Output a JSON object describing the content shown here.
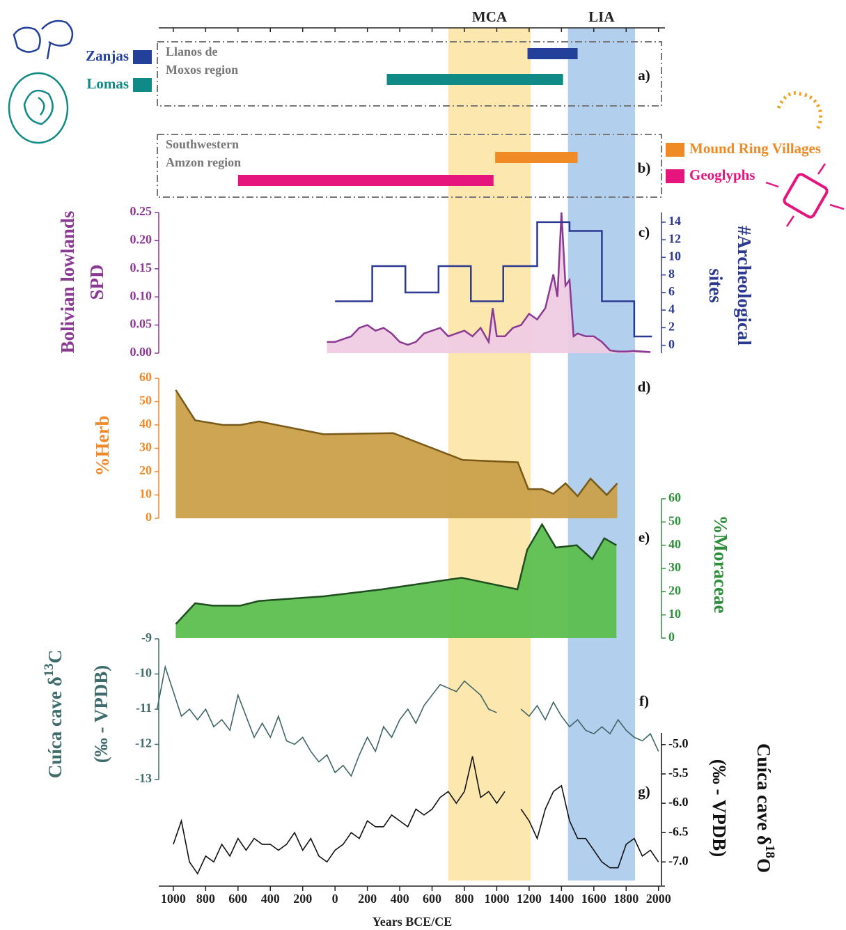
{
  "chart_data": {
    "type": "stacked-panels",
    "xlabel": "Years BCE/CE",
    "xlim": [
      -1090,
      2040
    ],
    "xticks": [
      {
        "value": -1000,
        "label": "1000"
      },
      {
        "value": -800,
        "label": "800"
      },
      {
        "value": -600,
        "label": "600"
      },
      {
        "value": -400,
        "label": "400"
      },
      {
        "value": -200,
        "label": "200"
      },
      0,
      200,
      400,
      600,
      800,
      1000,
      1200,
      1400,
      1600,
      1800,
      2000
    ],
    "bands": [
      {
        "name": "MCA",
        "start": 700,
        "end": 1210,
        "color": "#fbe29a"
      },
      {
        "name": "LIA",
        "start": 1440,
        "end": 1855,
        "color": "#9fc3e8"
      }
    ],
    "panels": [
      {
        "type": "gantt",
        "label": "a)",
        "legend": "left",
        "region": [
          "Llanos de",
          "Moxos region"
        ],
        "series": [
          {
            "name": "Zanjas",
            "color": "#23409a",
            "start": 1190,
            "end": 1500
          },
          {
            "name": "Lomas",
            "color": "#0f8a87",
            "start": 320,
            "end": 1410
          }
        ]
      },
      {
        "type": "gantt",
        "label": "b)",
        "legend": "right",
        "region": [
          "Southwestern",
          "Amzon region"
        ],
        "series": [
          {
            "name": "Mound Ring Villages",
            "color": "#f08a24",
            "start": 990,
            "end": 1500
          },
          {
            "name": "Geoglyphs",
            "color": "#e6157e",
            "start": -600,
            "end": 980
          }
        ]
      },
      {
        "type": "chart",
        "label": "c)",
        "ylabel": [
          "Bolivian lowlands",
          "SPD"
        ],
        "axis_color": "#8b3a93",
        "ylim": [
          0,
          0.25
        ],
        "yticks": [
          {
            "value": 0,
            "label": "0.00"
          },
          0.05,
          {
            "value": 0.1,
            "label": "0.10"
          },
          0.15,
          {
            "value": 0.2,
            "label": "0.20"
          },
          0.25
        ],
        "y2label": [
          "#Archeological",
          "sites"
        ],
        "y2_axis_color": "#2b3990",
        "y2lim": [
          -0.9,
          15.1
        ],
        "y2ticks": [
          0,
          2,
          4,
          6,
          8,
          10,
          12,
          14
        ],
        "series": [
          {
            "type": "area",
            "color": "#efcbe3",
            "line_color": "#8b3a93",
            "x": [
              -50,
              0,
              50,
              100,
              150,
              200,
              250,
              300,
              350,
              400,
              450,
              500,
              550,
              600,
              650,
              700,
              750,
              800,
              850,
              900,
              950,
              975,
              1000,
              1050,
              1100,
              1150,
              1200,
              1250,
              1300,
              1350,
              1375,
              1400,
              1425,
              1450,
              1475,
              1500,
              1550,
              1600,
              1650,
              1700,
              1750,
              1800,
              1850,
              1900,
              1950
            ],
            "values": [
              0.02,
              0.02,
              0.025,
              0.03,
              0.045,
              0.05,
              0.04,
              0.045,
              0.035,
              0.02,
              0.015,
              0.02,
              0.035,
              0.04,
              0.045,
              0.03,
              0.035,
              0.04,
              0.03,
              0.045,
              0.02,
              0.08,
              0.03,
              0.03,
              0.045,
              0.05,
              0.07,
              0.06,
              0.08,
              0.14,
              0.1,
              0.25,
              0.12,
              0.13,
              0.03,
              0.035,
              0.03,
              0.03,
              0.02,
              0.005,
              0.003,
              0.003,
              0.004,
              0.003,
              0.002
            ]
          },
          {
            "type": "step",
            "axis": "y2",
            "color": "#2b3990",
            "bins": [
              0,
              230,
              435,
              640,
              840,
              1040,
              1250,
              1450,
              1650,
              1850,
              1960
            ],
            "values": [
              5,
              9,
              6,
              9,
              5,
              9,
              14,
              13,
              5,
              1
            ]
          }
        ]
      },
      {
        "type": "chart",
        "label": "d)",
        "ylabel": [
          "%Herb"
        ],
        "axis_color": "#f0892a",
        "ylim": [
          0,
          60
        ],
        "yticks": [
          0,
          10,
          20,
          30,
          40,
          50,
          60
        ],
        "series": [
          {
            "type": "area",
            "color": "#caa04a",
            "line_color": "#7a5a18",
            "x": [
              -985,
              -865,
              -693,
              -585,
              -470,
              -70,
              360,
              790,
              1130,
              1195,
              1280,
              1350,
              1425,
              1500,
              1580,
              1680,
              1745
            ],
            "values": [
              55,
              42,
              40,
              40,
              41.5,
              36,
              36.5,
              25,
              24,
              12.5,
              12.5,
              10.5,
              15,
              9.5,
              17,
              10,
              15
            ]
          }
        ]
      },
      {
        "type": "chart",
        "label": "e)",
        "y2label": [
          "%Moraceae"
        ],
        "y2_axis_color": "#2f8f3c",
        "y2lim": [
          0,
          60
        ],
        "y2ticks": [
          0,
          10,
          20,
          30,
          40,
          50,
          60
        ],
        "series": [
          {
            "type": "area",
            "axis": "y2",
            "color": "#5cbf4f",
            "line_color": "#1f4d1f",
            "x": [
              -985,
              -865,
              -757,
              -585,
              -470,
              -70,
              290,
              783,
              1128,
              1188,
              1280,
              1365,
              1494,
              1590,
              1665,
              1740
            ],
            "values": [
              6,
              15,
              14,
              14,
              16,
              18,
              21,
              26,
              21,
              38,
              49,
              39,
              40,
              34,
              43,
              40
            ]
          }
        ]
      },
      {
        "type": "chart",
        "label": "f)",
        "ylabel": [
          [
            "Cuíca cave δ",
            "13",
            "C"
          ],
          "(‰ - VPDB)"
        ],
        "axis_color": "#3f6b6b",
        "ylim": [
          -13,
          -9
        ],
        "yticks": [
          -13,
          -12,
          -11,
          -10,
          -9
        ],
        "series": [
          {
            "type": "line",
            "color": "#3e6565",
            "x": [
              -1100,
              -1050,
              -1000,
              -950,
              -900,
              -850,
              -800,
              -750,
              -700,
              -650,
              -600,
              -550,
              -500,
              -450,
              -400,
              -350,
              -300,
              -250,
              -200,
              -150,
              -100,
              -50,
              0,
              50,
              100,
              150,
              200,
              250,
              300,
              350,
              400,
              450,
              500,
              550,
              600,
              650,
              700,
              750,
              800,
              850,
              900,
              950,
              1000,
              1050,
              1100,
              1150,
              1200,
              1250,
              1300,
              1350,
              1400,
              1450,
              1500,
              1550,
              1600,
              1650,
              1700,
              1750,
              1800,
              1850,
              1900,
              1950,
              2000
            ],
            "values": [
              -11.0,
              -9.8,
              -10.5,
              -11.2,
              -11.0,
              -11.3,
              -11.0,
              -11.5,
              -11.3,
              -11.6,
              -10.6,
              -11.2,
              -11.8,
              -11.4,
              -11.8,
              -11.2,
              -11.9,
              -12.0,
              -11.8,
              -12.2,
              -12.5,
              -12.3,
              -12.8,
              -12.6,
              -12.9,
              -12.3,
              -11.8,
              -12.2,
              -11.5,
              -11.8,
              -11.3,
              -11.0,
              -11.4,
              -10.9,
              -10.6,
              -10.3,
              -10.4,
              -10.5,
              -10.2,
              -10.4,
              -10.6,
              -11.0,
              -11.1,
              null,
              null,
              -11.0,
              -11.2,
              -10.9,
              -11.3,
              -10.8,
              -11.2,
              -11.5,
              -11.3,
              -11.6,
              -11.7,
              -11.5,
              -11.7,
              -11.3,
              -11.6,
              -11.8,
              -11.9,
              -11.7,
              -12.2
            ]
          }
        ]
      },
      {
        "type": "chart",
        "label": "g)",
        "y2label": [
          [
            "Cuíca cave δ",
            "18",
            "O"
          ],
          "(‰ - VPDB)"
        ],
        "y2_axis_color": "#111111",
        "y2lim": [
          -7.4,
          -4.8
        ],
        "y2ticks": [
          {
            "value": -7,
            "label": "-7.0"
          },
          -6.5,
          {
            "value": -6,
            "label": "-6.0"
          },
          -5.5,
          {
            "value": -5,
            "label": "-5.0"
          }
        ],
        "series": [
          {
            "type": "line",
            "axis": "y2",
            "color": "#111111",
            "x": [
              -1000,
              -950,
              -900,
              -850,
              -800,
              -750,
              -700,
              -650,
              -600,
              -550,
              -500,
              -450,
              -400,
              -350,
              -300,
              -250,
              -200,
              -150,
              -100,
              -50,
              0,
              50,
              100,
              150,
              200,
              250,
              300,
              350,
              400,
              450,
              500,
              550,
              600,
              650,
              700,
              750,
              800,
              850,
              900,
              950,
              1000,
              1050,
              1100,
              1150,
              1200,
              1250,
              1300,
              1350,
              1400,
              1450,
              1500,
              1550,
              1600,
              1650,
              1700,
              1750,
              1800,
              1850,
              1900,
              1950,
              2000
            ],
            "values": [
              -6.7,
              -6.3,
              -7.0,
              -7.2,
              -6.9,
              -7.0,
              -6.7,
              -6.9,
              -6.6,
              -6.8,
              -6.6,
              -6.7,
              -6.7,
              -6.8,
              -6.7,
              -6.5,
              -6.8,
              -6.6,
              -6.9,
              -7.0,
              -6.8,
              -6.7,
              -6.5,
              -6.6,
              -6.3,
              -6.4,
              -6.4,
              -6.2,
              -6.3,
              -6.4,
              -6.1,
              -6.2,
              -6.1,
              -5.9,
              -5.8,
              -6.0,
              -5.8,
              -5.2,
              -5.9,
              -5.8,
              -6.0,
              -5.8,
              null,
              -6.1,
              -6.3,
              -6.6,
              -6.1,
              -5.8,
              -5.7,
              -6.3,
              -6.6,
              -6.6,
              -6.8,
              -7.0,
              -7.1,
              -7.1,
              -6.7,
              -6.6,
              -6.9,
              -6.8,
              -7.0
            ]
          }
        ]
      }
    ]
  }
}
